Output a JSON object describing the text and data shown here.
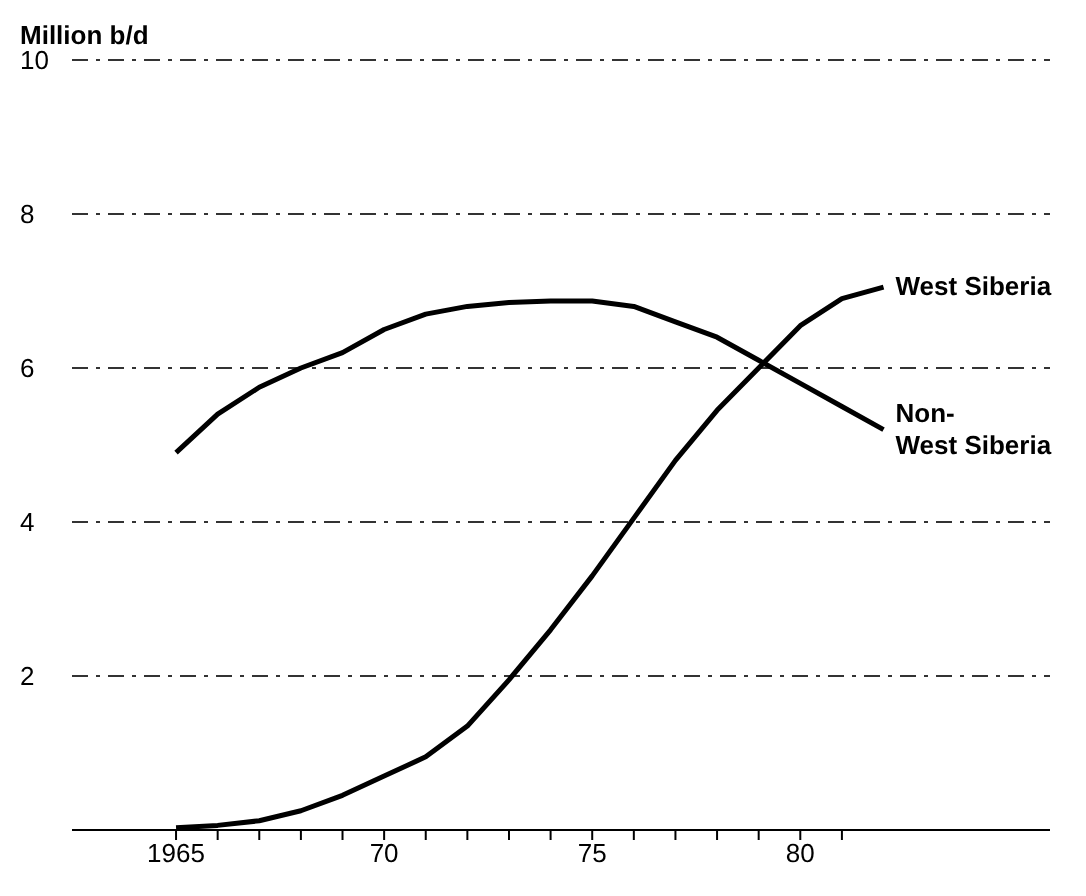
{
  "chart_data": {
    "type": "line",
    "ylabel": "Million b/d",
    "x": [
      1965,
      1966,
      1967,
      1968,
      1969,
      1970,
      1971,
      1972,
      1973,
      1974,
      1975,
      1976,
      1977,
      1978,
      1979,
      1980,
      1981,
      1982
    ],
    "series": [
      {
        "name": "West Siberia",
        "color": "#000000",
        "values": [
          0.03,
          0.06,
          0.12,
          0.25,
          0.45,
          0.7,
          0.95,
          1.35,
          1.95,
          2.6,
          3.3,
          4.05,
          4.8,
          5.45,
          6.0,
          6.55,
          6.9,
          7.05
        ]
      },
      {
        "name": "Non-West Siberia",
        "color": "#000000",
        "values": [
          4.9,
          5.4,
          5.75,
          6.0,
          6.2,
          6.5,
          6.7,
          6.8,
          6.85,
          6.87,
          6.87,
          6.8,
          6.6,
          6.4,
          6.1,
          5.8,
          5.5,
          5.2
        ]
      }
    ],
    "xlim": [
      1962.5,
      1986
    ],
    "xticks": [
      1965,
      {
        "value": 1966,
        "label": null
      },
      {
        "value": 1967,
        "label": null
      },
      {
        "value": 1968,
        "label": null
      },
      {
        "value": 1969,
        "label": null
      },
      {
        "value": 1970,
        "label": "70"
      },
      {
        "value": 1971,
        "label": null
      },
      {
        "value": 1972,
        "label": null
      },
      {
        "value": 1973,
        "label": null
      },
      {
        "value": 1974,
        "label": null
      },
      {
        "value": 1975,
        "label": "75"
      },
      {
        "value": 1976,
        "label": null
      },
      {
        "value": 1977,
        "label": null
      },
      {
        "value": 1978,
        "label": null
      },
      {
        "value": 1979,
        "label": null
      },
      {
        "value": 1980,
        "label": "80"
      },
      {
        "value": 1981,
        "label": null
      }
    ],
    "ylim": [
      0,
      10
    ],
    "yticks": [
      {
        "value": 0,
        "label": null
      },
      2,
      4,
      6,
      8,
      10
    ],
    "grid": "y",
    "marker": "none",
    "line_style": "solid"
  }
}
